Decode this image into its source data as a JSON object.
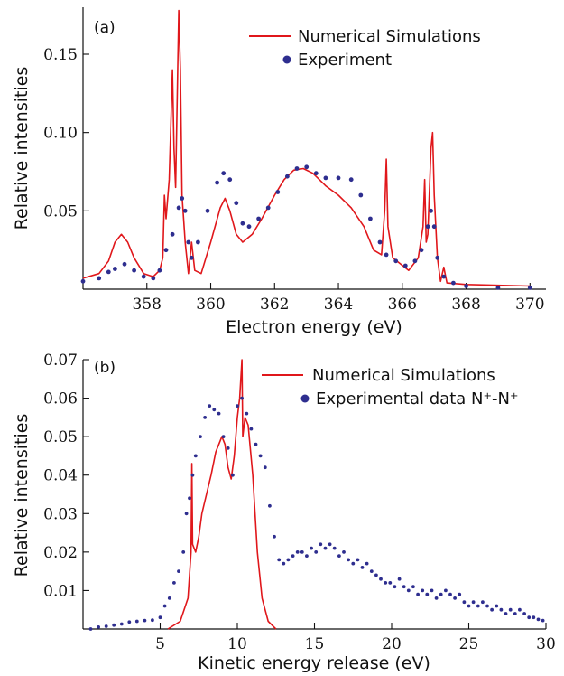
{
  "colors": {
    "simulation": "#e0171b",
    "experiment": "#2e2e8f",
    "axis": "#111111"
  },
  "chart_data": [
    {
      "type": "line",
      "panel_label": "(a)",
      "xlabel": "Electron energy (eV)",
      "ylabel": "Relative intensities",
      "xlim": [
        356,
        370.5
      ],
      "ylim": [
        0,
        0.18
      ],
      "x_ticks": [
        358,
        360,
        362,
        364,
        366,
        368,
        370
      ],
      "x_tick_labels": [
        "358",
        "360",
        "362",
        "364",
        "366",
        "368",
        "370"
      ],
      "y_ticks": [
        0.05,
        0.1,
        0.15
      ],
      "y_tick_labels": [
        "0.05",
        "0.10",
        "0.15"
      ],
      "legend_position": "top-right",
      "series": [
        {
          "name": "Numerical Simulations",
          "style": "line",
          "points": [
            [
              356.0,
              0.007
            ],
            [
              356.5,
              0.01
            ],
            [
              356.8,
              0.018
            ],
            [
              357.0,
              0.03
            ],
            [
              357.2,
              0.035
            ],
            [
              357.4,
              0.03
            ],
            [
              357.6,
              0.02
            ],
            [
              357.9,
              0.01
            ],
            [
              358.2,
              0.008
            ],
            [
              358.4,
              0.012
            ],
            [
              358.5,
              0.02
            ],
            [
              358.55,
              0.06
            ],
            [
              358.6,
              0.045
            ],
            [
              358.7,
              0.07
            ],
            [
              358.8,
              0.14
            ],
            [
              358.85,
              0.09
            ],
            [
              358.9,
              0.065
            ],
            [
              359.0,
              0.178
            ],
            [
              359.05,
              0.14
            ],
            [
              359.1,
              0.06
            ],
            [
              359.2,
              0.03
            ],
            [
              359.3,
              0.01
            ],
            [
              359.4,
              0.03
            ],
            [
              359.5,
              0.012
            ],
            [
              359.7,
              0.01
            ],
            [
              360.0,
              0.03
            ],
            [
              360.3,
              0.052
            ],
            [
              360.45,
              0.058
            ],
            [
              360.6,
              0.05
            ],
            [
              360.8,
              0.035
            ],
            [
              361.0,
              0.03
            ],
            [
              361.3,
              0.035
            ],
            [
              361.6,
              0.045
            ],
            [
              362.0,
              0.06
            ],
            [
              362.3,
              0.07
            ],
            [
              362.6,
              0.076
            ],
            [
              362.9,
              0.077
            ],
            [
              363.2,
              0.074
            ],
            [
              363.6,
              0.066
            ],
            [
              364.0,
              0.06
            ],
            [
              364.4,
              0.052
            ],
            [
              364.8,
              0.04
            ],
            [
              365.1,
              0.025
            ],
            [
              365.35,
              0.022
            ],
            [
              365.45,
              0.05
            ],
            [
              365.5,
              0.083
            ],
            [
              365.55,
              0.04
            ],
            [
              365.7,
              0.02
            ],
            [
              366.2,
              0.012
            ],
            [
              366.5,
              0.02
            ],
            [
              366.65,
              0.04
            ],
            [
              366.7,
              0.07
            ],
            [
              366.75,
              0.03
            ],
            [
              366.8,
              0.035
            ],
            [
              366.9,
              0.09
            ],
            [
              366.95,
              0.1
            ],
            [
              367.0,
              0.06
            ],
            [
              367.1,
              0.02
            ],
            [
              367.2,
              0.005
            ],
            [
              367.3,
              0.014
            ],
            [
              367.4,
              0.004
            ],
            [
              368.0,
              0.003
            ],
            [
              370.0,
              0.002
            ]
          ]
        },
        {
          "name": "Experiment",
          "style": "markers",
          "points": [
            [
              356.0,
              0.005
            ],
            [
              356.5,
              0.007
            ],
            [
              356.8,
              0.011
            ],
            [
              357.0,
              0.013
            ],
            [
              357.3,
              0.016
            ],
            [
              357.6,
              0.012
            ],
            [
              357.9,
              0.008
            ],
            [
              358.2,
              0.007
            ],
            [
              358.4,
              0.012
            ],
            [
              358.6,
              0.025
            ],
            [
              358.8,
              0.035
            ],
            [
              359.0,
              0.052
            ],
            [
              359.1,
              0.058
            ],
            [
              359.2,
              0.05
            ],
            [
              359.3,
              0.03
            ],
            [
              359.4,
              0.02
            ],
            [
              359.6,
              0.03
            ],
            [
              359.9,
              0.05
            ],
            [
              360.2,
              0.068
            ],
            [
              360.4,
              0.074
            ],
            [
              360.6,
              0.07
            ],
            [
              360.8,
              0.055
            ],
            [
              361.0,
              0.042
            ],
            [
              361.2,
              0.04
            ],
            [
              361.5,
              0.045
            ],
            [
              361.8,
              0.052
            ],
            [
              362.1,
              0.062
            ],
            [
              362.4,
              0.072
            ],
            [
              362.7,
              0.077
            ],
            [
              363.0,
              0.078
            ],
            [
              363.3,
              0.074
            ],
            [
              363.6,
              0.071
            ],
            [
              364.0,
              0.071
            ],
            [
              364.4,
              0.07
            ],
            [
              364.7,
              0.06
            ],
            [
              365.0,
              0.045
            ],
            [
              365.3,
              0.03
            ],
            [
              365.5,
              0.022
            ],
            [
              365.8,
              0.018
            ],
            [
              366.1,
              0.015
            ],
            [
              366.4,
              0.018
            ],
            [
              366.6,
              0.025
            ],
            [
              366.8,
              0.04
            ],
            [
              366.9,
              0.05
            ],
            [
              367.0,
              0.04
            ],
            [
              367.1,
              0.02
            ],
            [
              367.3,
              0.008
            ],
            [
              367.6,
              0.004
            ],
            [
              368.0,
              0.002
            ],
            [
              369.0,
              0.001
            ],
            [
              370.0,
              0.001
            ]
          ]
        }
      ]
    },
    {
      "type": "line",
      "panel_label": "(b)",
      "xlabel": "Kinetic energy release (eV)",
      "ylabel": "Relative intensities",
      "xlim": [
        0,
        30
      ],
      "ylim": [
        0,
        0.07
      ],
      "x_ticks": [
        5,
        10,
        15,
        20,
        25,
        30
      ],
      "x_tick_labels": [
        "5",
        "10",
        "15",
        "20",
        "25",
        "30"
      ],
      "y_ticks": [
        0.01,
        0.02,
        0.03,
        0.04,
        0.05,
        0.06,
        0.07
      ],
      "y_tick_labels": [
        "0.01",
        "0.02",
        "0.03",
        "0.04",
        "0.05",
        "0.06",
        "0.07"
      ],
      "legend_position": "top-right",
      "series": [
        {
          "name": "Numerical Simulations",
          "style": "line",
          "points": [
            [
              5.5,
              0.0
            ],
            [
              6.3,
              0.002
            ],
            [
              6.8,
              0.008
            ],
            [
              7.0,
              0.02
            ],
            [
              7.05,
              0.043
            ],
            [
              7.1,
              0.022
            ],
            [
              7.3,
              0.02
            ],
            [
              7.5,
              0.024
            ],
            [
              7.7,
              0.03
            ],
            [
              8.0,
              0.035
            ],
            [
              8.3,
              0.04
            ],
            [
              8.6,
              0.046
            ],
            [
              9.0,
              0.05
            ],
            [
              9.2,
              0.048
            ],
            [
              9.4,
              0.042
            ],
            [
              9.6,
              0.039
            ],
            [
              9.8,
              0.045
            ],
            [
              10.0,
              0.055
            ],
            [
              10.15,
              0.06
            ],
            [
              10.3,
              0.07
            ],
            [
              10.35,
              0.05
            ],
            [
              10.5,
              0.055
            ],
            [
              10.7,
              0.053
            ],
            [
              11.0,
              0.04
            ],
            [
              11.3,
              0.02
            ],
            [
              11.6,
              0.008
            ],
            [
              12.0,
              0.002
            ],
            [
              12.5,
              0.0
            ]
          ]
        },
        {
          "name": "Experimental data N⁺-N⁺",
          "style": "markers",
          "points": [
            [
              0.5,
              0.0
            ],
            [
              1.0,
              0.0005
            ],
            [
              1.5,
              0.0007
            ],
            [
              2.0,
              0.001
            ],
            [
              2.5,
              0.0013
            ],
            [
              3.0,
              0.0018
            ],
            [
              3.5,
              0.002
            ],
            [
              4.0,
              0.0022
            ],
            [
              4.5,
              0.0023
            ],
            [
              5.0,
              0.003
            ],
            [
              5.3,
              0.006
            ],
            [
              5.6,
              0.008
            ],
            [
              5.9,
              0.012
            ],
            [
              6.2,
              0.015
            ],
            [
              6.5,
              0.02
            ],
            [
              6.7,
              0.03
            ],
            [
              6.9,
              0.034
            ],
            [
              7.1,
              0.04
            ],
            [
              7.3,
              0.045
            ],
            [
              7.6,
              0.05
            ],
            [
              7.9,
              0.055
            ],
            [
              8.2,
              0.058
            ],
            [
              8.5,
              0.057
            ],
            [
              8.8,
              0.056
            ],
            [
              9.1,
              0.05
            ],
            [
              9.4,
              0.047
            ],
            [
              9.7,
              0.04
            ],
            [
              10.0,
              0.058
            ],
            [
              10.3,
              0.06
            ],
            [
              10.6,
              0.056
            ],
            [
              10.9,
              0.052
            ],
            [
              11.2,
              0.048
            ],
            [
              11.5,
              0.045
            ],
            [
              11.8,
              0.042
            ],
            [
              12.1,
              0.032
            ],
            [
              12.4,
              0.024
            ],
            [
              12.7,
              0.018
            ],
            [
              13.0,
              0.017
            ],
            [
              13.3,
              0.018
            ],
            [
              13.6,
              0.019
            ],
            [
              13.9,
              0.02
            ],
            [
              14.2,
              0.02
            ],
            [
              14.5,
              0.019
            ],
            [
              14.8,
              0.021
            ],
            [
              15.1,
              0.02
            ],
            [
              15.4,
              0.022
            ],
            [
              15.7,
              0.021
            ],
            [
              16.0,
              0.022
            ],
            [
              16.3,
              0.021
            ],
            [
              16.6,
              0.019
            ],
            [
              16.9,
              0.02
            ],
            [
              17.2,
              0.018
            ],
            [
              17.5,
              0.017
            ],
            [
              17.8,
              0.018
            ],
            [
              18.1,
              0.016
            ],
            [
              18.4,
              0.017
            ],
            [
              18.7,
              0.015
            ],
            [
              19.0,
              0.014
            ],
            [
              19.3,
              0.013
            ],
            [
              19.6,
              0.012
            ],
            [
              19.9,
              0.012
            ],
            [
              20.2,
              0.011
            ],
            [
              20.5,
              0.013
            ],
            [
              20.8,
              0.011
            ],
            [
              21.1,
              0.01
            ],
            [
              21.4,
              0.011
            ],
            [
              21.7,
              0.009
            ],
            [
              22.0,
              0.01
            ],
            [
              22.3,
              0.009
            ],
            [
              22.6,
              0.01
            ],
            [
              22.9,
              0.008
            ],
            [
              23.2,
              0.009
            ],
            [
              23.5,
              0.01
            ],
            [
              23.8,
              0.009
            ],
            [
              24.1,
              0.008
            ],
            [
              24.4,
              0.009
            ],
            [
              24.7,
              0.007
            ],
            [
              25.0,
              0.006
            ],
            [
              25.3,
              0.007
            ],
            [
              25.6,
              0.006
            ],
            [
              25.9,
              0.007
            ],
            [
              26.2,
              0.006
            ],
            [
              26.5,
              0.005
            ],
            [
              26.8,
              0.006
            ],
            [
              27.1,
              0.005
            ],
            [
              27.4,
              0.004
            ],
            [
              27.7,
              0.005
            ],
            [
              28.0,
              0.004
            ],
            [
              28.3,
              0.005
            ],
            [
              28.6,
              0.004
            ],
            [
              28.9,
              0.003
            ],
            [
              29.2,
              0.003
            ],
            [
              29.5,
              0.0025
            ],
            [
              29.8,
              0.0022
            ]
          ]
        }
      ]
    }
  ]
}
